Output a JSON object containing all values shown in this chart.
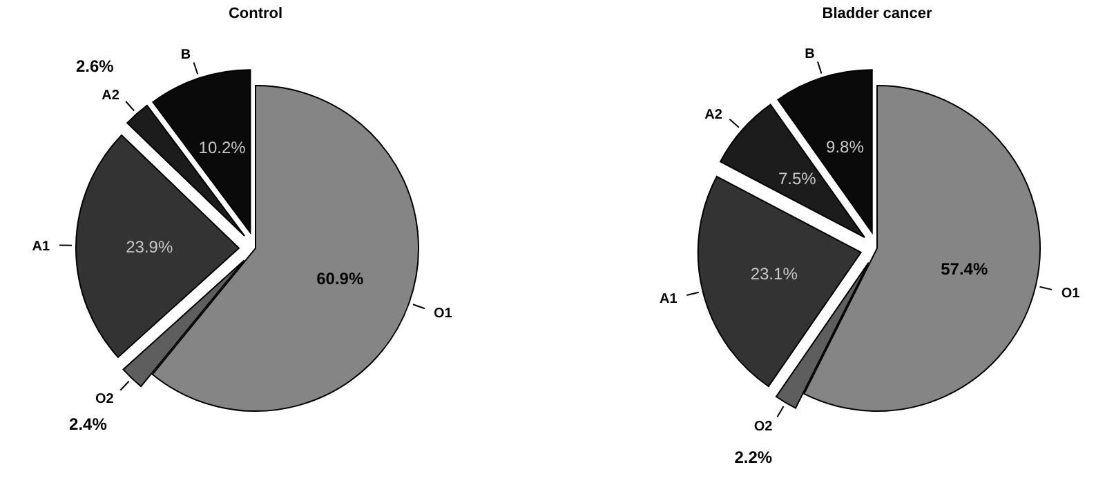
{
  "chart_data": [
    {
      "type": "pie",
      "title": "Control",
      "categories": [
        "O1",
        "O2",
        "A1",
        "A2",
        "B"
      ],
      "values": [
        60.9,
        2.4,
        23.9,
        2.6,
        10.2
      ],
      "colors": [
        "#858585",
        "#5e5e5e",
        "#333333",
        "#1c1c1c",
        "#0a0a0a"
      ],
      "value_labels": [
        "60.9%",
        "2.4%",
        "23.9%",
        "2.6%",
        "10.2%"
      ]
    },
    {
      "type": "pie",
      "title": "Bladder cancer",
      "categories": [
        "O1",
        "O2",
        "A1",
        "A2",
        "B"
      ],
      "values": [
        57.4,
        2.2,
        23.1,
        7.5,
        9.8
      ],
      "colors": [
        "#858585",
        "#5e5e5e",
        "#333333",
        "#1c1c1c",
        "#0a0a0a"
      ],
      "value_labels": [
        "57.4%",
        "2.2%",
        "23.1%",
        "7.5%",
        "9.8%"
      ]
    }
  ]
}
